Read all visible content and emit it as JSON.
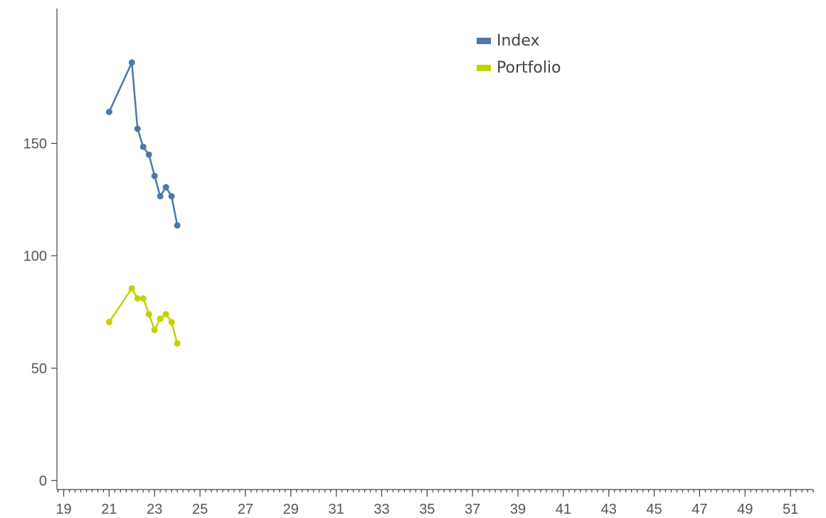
{
  "chart_data": {
    "type": "line",
    "xlim": [
      18.7,
      52.0
    ],
    "ylim": [
      -4,
      210
    ],
    "x_ticks": [
      19,
      21,
      23,
      25,
      27,
      29,
      31,
      33,
      35,
      37,
      39,
      41,
      43,
      45,
      47,
      49,
      51
    ],
    "y_ticks": [
      0,
      50,
      100,
      150
    ],
    "legend_position": "top-center",
    "series": [
      {
        "name": "Index",
        "color": "#4e78a6",
        "x": [
          21,
          22,
          22.25,
          22.5,
          22.75,
          23,
          23.25,
          23.5,
          23.75,
          24
        ],
        "y": [
          164,
          186,
          156.5,
          148.5,
          145,
          135.5,
          126.5,
          130.5,
          126.5,
          113.5
        ]
      },
      {
        "name": "Portfolio",
        "color": "#c4d100",
        "x": [
          21,
          22,
          22.25,
          22.5,
          22.75,
          23,
          23.25,
          23.5,
          23.75,
          24
        ],
        "y": [
          70.5,
          85.5,
          81,
          81,
          74,
          67,
          72,
          74,
          70.5,
          61
        ]
      }
    ]
  }
}
